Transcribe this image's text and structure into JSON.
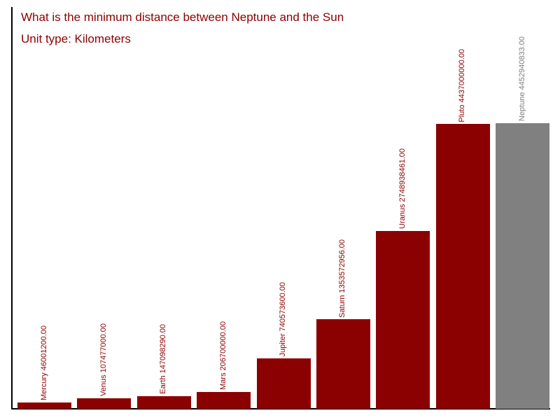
{
  "header": {
    "title": "What is the minimum distance between Neptune and the Sun",
    "subtitle": "Unit type: Kilometers"
  },
  "colors": {
    "title": "#8b0000",
    "bar": "#8b0000",
    "highlight": "#808080",
    "axis": "#000000"
  },
  "chart_data": {
    "type": "bar",
    "title": "What is the minimum distance between Neptune and the Sun",
    "subtitle": "Unit type: Kilometers",
    "unit": "Kilometers",
    "categories": [
      "Mercury",
      "Venus",
      "Earth",
      "Mars",
      "Jupiter",
      "Saturn",
      "Uranus",
      "Pluto",
      "Neptune"
    ],
    "values": [
      46001200.0,
      107477000.0,
      147098290.0,
      206700000.0,
      740573600.0,
      1353572956.0,
      2748938461.0,
      4437000000.0,
      4452940833.0
    ],
    "value_labels": [
      "46001200.00",
      "107477000.00",
      "147098290.00",
      "206700000.00",
      "740573600.00",
      "1353572956.00",
      "2748938461.00",
      "4437000000.00",
      "4452940833.00"
    ],
    "bar_color": "#8b0000",
    "highlight_color": "#808080",
    "highlight_index": 8,
    "highlight_category": "Neptune",
    "label_rotation": 90,
    "xlabel": "",
    "ylabel": "",
    "ylim": [
      0,
      4452940833
    ],
    "grid": false,
    "legend": false
  }
}
